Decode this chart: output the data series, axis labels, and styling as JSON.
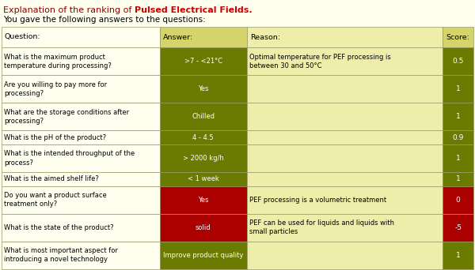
{
  "title_normal": "Explanation of the ranking of ",
  "title_bold": "Pulsed Electrical Fields.",
  "subtitle": "You gave the following answers to the questions:",
  "title_color": "#8B0000",
  "bold_color": "#CC0000",
  "headers": [
    "Question:",
    "Answer:",
    "Reason:",
    "Score:"
  ],
  "rows": [
    {
      "question": "What is the maximum product\ntemperature during processing?",
      "answer": ">7 - <21°C",
      "reason": "Optimal temperature for PEF processing is\nbetween 30 and 50°C",
      "score": "0.5",
      "answer_bg": "#6B7A00",
      "score_bg": "#6B7A00"
    },
    {
      "question": "Are you willing to pay more for\nprocessing?",
      "answer": "Yes",
      "reason": "",
      "score": "1",
      "answer_bg": "#6B7A00",
      "score_bg": "#6B7A00"
    },
    {
      "question": "What are the storage conditions after\nprocessing?",
      "answer": "Chilled",
      "reason": "",
      "score": "1",
      "answer_bg": "#6B7A00",
      "score_bg": "#6B7A00"
    },
    {
      "question": "What is the pH of the product?",
      "answer": "4 - 4.5",
      "reason": "",
      "score": "0.9",
      "answer_bg": "#6B7A00",
      "score_bg": "#6B7A00"
    },
    {
      "question": "What is the intended throughput of the\nprocess?",
      "answer": "> 2000 kg/h",
      "reason": "",
      "score": "1",
      "answer_bg": "#6B7A00",
      "score_bg": "#6B7A00"
    },
    {
      "question": "What is the aimed shelf life?",
      "answer": "< 1 week",
      "reason": "",
      "score": "1",
      "answer_bg": "#6B7A00",
      "score_bg": "#6B7A00"
    },
    {
      "question": "Do you want a product surface\ntreatment only?",
      "answer": "Yes",
      "reason": "PEF processing is a volumetric treatment",
      "score": "0",
      "answer_bg": "#AA0000",
      "score_bg": "#AA0000"
    },
    {
      "question": "What is the state of the product?",
      "answer": "solid",
      "reason": "PEF can be used for liquids and liquids with\nsmall particles",
      "score": "-5",
      "answer_bg": "#AA0000",
      "score_bg": "#AA0000"
    },
    {
      "question": "What is most important aspect for\nintroducing a novel technology",
      "answer": "Improve product quality",
      "reason": "",
      "score": "1",
      "answer_bg": "#6B7A00",
      "score_bg": "#6B7A00"
    }
  ],
  "bg_color": "#FFFFF0",
  "header_bg": "#D4D46A",
  "cell_reason_bg": "#EEEEAA",
  "cell_question_bg": "#FFFFF0",
  "text_color_light": "#FFFFFF",
  "text_color_dark": "#000000",
  "border_color": "#999966",
  "figsize": [
    6.0,
    3.42
  ],
  "dpi": 100
}
